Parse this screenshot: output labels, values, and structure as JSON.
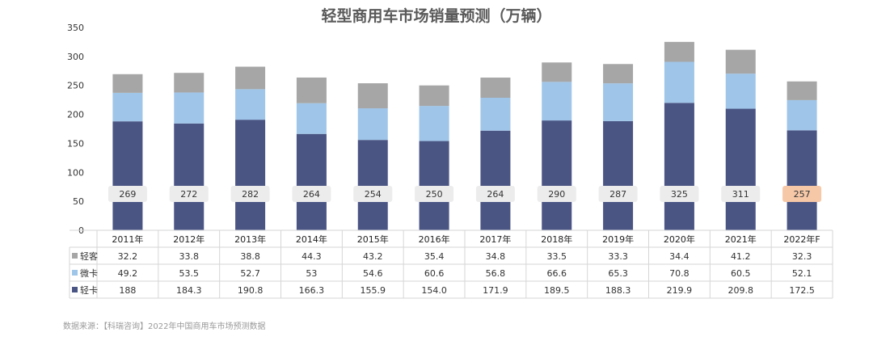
{
  "chart_data": {
    "type": "bar",
    "stacked": true,
    "title": "轻型商用车市场销量预测（万辆）",
    "categories": [
      "2011年",
      "2012年",
      "2013年",
      "2014年",
      "2015年",
      "2016年",
      "2017年",
      "2018年",
      "2019年",
      "2020年",
      "2021年",
      "2022年F"
    ],
    "series": [
      {
        "name": "轻卡",
        "color": "#4a5584",
        "values": [
          "188",
          "184.3",
          "190.8",
          "166.3",
          "155.9",
          "154.0",
          "171.9",
          "189.5",
          "188.3",
          "219.9",
          "209.8",
          "172.5"
        ]
      },
      {
        "name": "微卡",
        "color": "#9fc5e8",
        "values": [
          "49.2",
          "53.5",
          "52.7",
          "53",
          "54.6",
          "60.6",
          "56.8",
          "66.6",
          "65.3",
          "70.8",
          "60.5",
          "52.1"
        ]
      },
      {
        "name": "轻客",
        "color": "#a6a6a6",
        "values": [
          "32.2",
          "33.8",
          "38.8",
          "44.3",
          "43.2",
          "35.4",
          "34.8",
          "33.5",
          "33.3",
          "34.4",
          "41.2",
          "32.3"
        ]
      }
    ],
    "totals": [
      "269",
      "272",
      "282",
      "264",
      "254",
      "250",
      "264",
      "290",
      "287",
      "325",
      "311",
      "257"
    ],
    "highlight_total_color": "#f6c8a8",
    "total_label_color": "#ececec",
    "yticks": [
      "0",
      "50",
      "100",
      "150",
      "200",
      "250",
      "300",
      "350"
    ],
    "ylim": [
      0,
      350
    ],
    "legend": "table-bottom",
    "source": "数据来源：【科瑞咨询】2022年中国商用车市场预测数据"
  }
}
